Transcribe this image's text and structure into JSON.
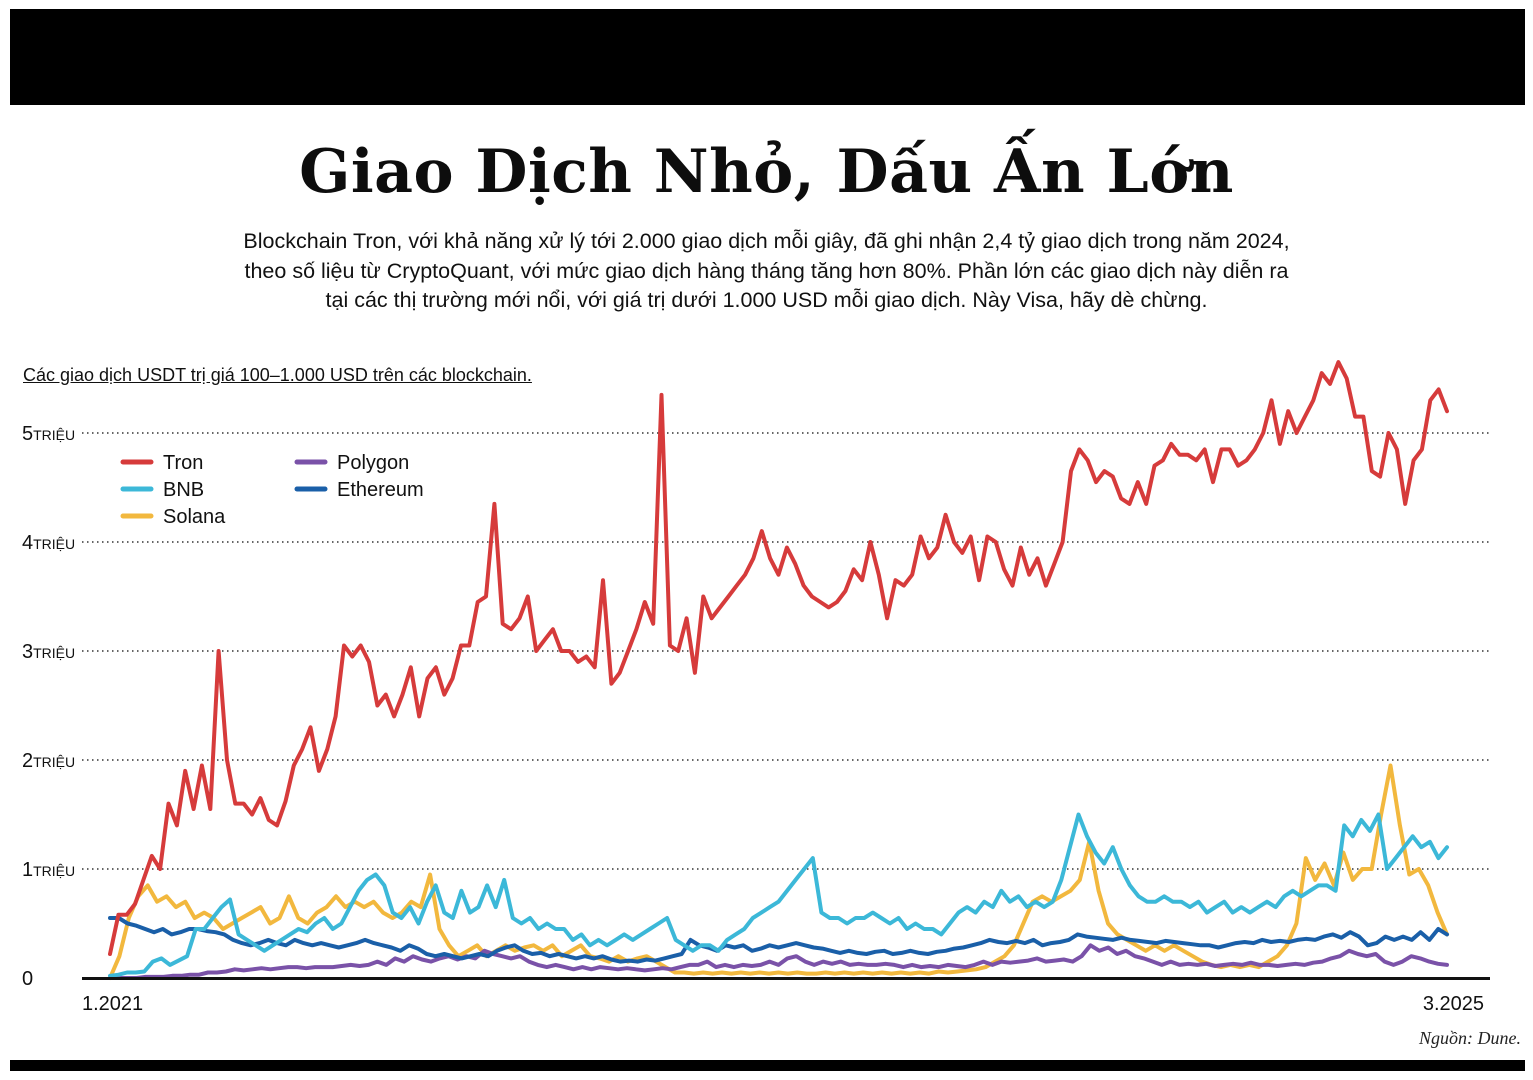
{
  "header": {
    "title": "Giao Dịch Nhỏ, Dấu Ấn Lớn",
    "subtitle_lines": [
      "Blockchain Tron, với khả năng xử lý tới 2.000 giao dịch mỗi giây, đã ghi nhận 2,4 tỷ giao dịch trong năm 2024,",
      "theo số liệu từ CryptoQuant, với mức giao dịch hàng tháng tăng hơn 80%. Phần lớn các giao dịch này diễn ra",
      "tại các thị trường mới nổi, với giá trị dưới 1.000 USD mỗi giao dịch. Này Visa, hãy dè chừng."
    ]
  },
  "footer": {
    "source": "Nguồn: Dune."
  },
  "chart_data": {
    "type": "line",
    "title": "Các giao dịch USDT trị giá 100–1.000 USD trên các blockchain.",
    "xlabel": "",
    "ylabel": "",
    "x_tick_labels": [
      "1.2021",
      "3.2025"
    ],
    "x_range": [
      "1.2021",
      "3.2025"
    ],
    "ylim": [
      0,
      5600000
    ],
    "y_ticks": [
      {
        "value": 0,
        "num": "0",
        "unit": ""
      },
      {
        "value": 1000000,
        "num": "1",
        "unit": "TRIỆU"
      },
      {
        "value": 2000000,
        "num": "2",
        "unit": "TRIỆU"
      },
      {
        "value": 3000000,
        "num": "3",
        "unit": "TRIỆU"
      },
      {
        "value": 4000000,
        "num": "4",
        "unit": "TRIỆU"
      },
      {
        "value": 5000000,
        "num": "5",
        "unit": "TRIỆU"
      }
    ],
    "grid": "horizontal dotted",
    "legend": "top-left",
    "x_note": "points are evenly spaced in time from 1.2021 to 3.2025",
    "series": [
      {
        "name": "Tron",
        "color": "#d63b3b",
        "values": [
          0.22,
          0.58,
          0.58,
          0.68,
          0.9,
          1.12,
          1.0,
          1.6,
          1.4,
          1.9,
          1.55,
          1.95,
          1.55,
          3.0,
          2.0,
          1.6,
          1.6,
          1.5,
          1.65,
          1.45,
          1.4,
          1.62,
          1.95,
          2.1,
          2.3,
          1.9,
          2.1,
          2.4,
          3.05,
          2.95,
          3.05,
          2.9,
          2.5,
          2.6,
          2.4,
          2.6,
          2.85,
          2.4,
          2.75,
          2.85,
          2.6,
          2.75,
          3.05,
          3.05,
          3.45,
          3.5,
          4.35,
          3.25,
          3.2,
          3.3,
          3.5,
          3.0,
          3.1,
          3.2,
          3.0,
          3.0,
          2.9,
          2.95,
          2.85,
          3.65,
          2.7,
          2.8,
          3.0,
          3.2,
          3.45,
          3.25,
          5.35,
          3.05,
          3.0,
          3.3,
          2.8,
          3.5,
          3.3,
          3.4,
          3.5,
          3.6,
          3.7,
          3.85,
          4.1,
          3.85,
          3.7,
          3.95,
          3.8,
          3.6,
          3.5,
          3.45,
          3.4,
          3.45,
          3.55,
          3.75,
          3.65,
          4.0,
          3.7,
          3.3,
          3.65,
          3.6,
          3.7,
          4.05,
          3.85,
          3.95,
          4.25,
          4.0,
          3.9,
          4.05,
          3.65,
          4.05,
          4.0,
          3.75,
          3.6,
          3.95,
          3.7,
          3.85,
          3.6,
          3.8,
          4.0,
          4.65,
          4.85,
          4.75,
          4.55,
          4.65,
          4.6,
          4.4,
          4.35,
          4.55,
          4.35,
          4.7,
          4.75,
          4.9,
          4.8,
          4.8,
          4.75,
          4.85,
          4.55,
          4.85,
          4.85,
          4.7,
          4.75,
          4.85,
          5.0,
          5.3,
          4.9,
          5.2,
          5.0,
          5.15,
          5.3,
          5.55,
          5.45,
          5.65,
          5.5,
          5.15,
          5.15,
          4.65,
          4.6,
          5.0,
          4.85,
          4.35,
          4.75,
          4.85,
          5.3,
          5.4,
          5.2
        ]
      },
      {
        "name": "BNB",
        "color": "#3cb8d8",
        "values": [
          0.02,
          0.03,
          0.05,
          0.05,
          0.06,
          0.15,
          0.18,
          0.12,
          0.16,
          0.2,
          0.45,
          0.45,
          0.55,
          0.65,
          0.72,
          0.4,
          0.35,
          0.3,
          0.25,
          0.3,
          0.35,
          0.4,
          0.45,
          0.42,
          0.5,
          0.55,
          0.45,
          0.5,
          0.65,
          0.8,
          0.9,
          0.95,
          0.85,
          0.6,
          0.55,
          0.65,
          0.5,
          0.7,
          0.85,
          0.6,
          0.55,
          0.8,
          0.6,
          0.65,
          0.85,
          0.65,
          0.9,
          0.55,
          0.5,
          0.55,
          0.45,
          0.5,
          0.45,
          0.45,
          0.35,
          0.4,
          0.3,
          0.35,
          0.3,
          0.35,
          0.4,
          0.35,
          0.4,
          0.45,
          0.5,
          0.55,
          0.35,
          0.3,
          0.25,
          0.3,
          0.3,
          0.25,
          0.35,
          0.4,
          0.45,
          0.55,
          0.6,
          0.65,
          0.7,
          0.8,
          0.9,
          1.0,
          1.1,
          0.6,
          0.55,
          0.55,
          0.5,
          0.55,
          0.55,
          0.6,
          0.55,
          0.5,
          0.55,
          0.45,
          0.5,
          0.45,
          0.45,
          0.4,
          0.5,
          0.6,
          0.65,
          0.6,
          0.7,
          0.65,
          0.8,
          0.7,
          0.75,
          0.65,
          0.7,
          0.65,
          0.7,
          0.9,
          1.2,
          1.5,
          1.3,
          1.15,
          1.05,
          1.2,
          1.0,
          0.85,
          0.75,
          0.7,
          0.7,
          0.75,
          0.7,
          0.7,
          0.65,
          0.7,
          0.6,
          0.65,
          0.7,
          0.6,
          0.65,
          0.6,
          0.65,
          0.7,
          0.65,
          0.75,
          0.8,
          0.75,
          0.8,
          0.85,
          0.85,
          0.8,
          1.4,
          1.3,
          1.45,
          1.35,
          1.5,
          1.0,
          1.1,
          1.2,
          1.3,
          1.2,
          1.25,
          1.1,
          1.2
        ]
      },
      {
        "name": "Solana",
        "color": "#f2b83e",
        "values": [
          0.0,
          0.2,
          0.55,
          0.75,
          0.85,
          0.7,
          0.75,
          0.65,
          0.7,
          0.55,
          0.6,
          0.55,
          0.45,
          0.5,
          0.55,
          0.6,
          0.65,
          0.5,
          0.55,
          0.75,
          0.55,
          0.5,
          0.6,
          0.65,
          0.75,
          0.65,
          0.7,
          0.65,
          0.7,
          0.6,
          0.55,
          0.6,
          0.7,
          0.65,
          0.95,
          0.45,
          0.3,
          0.2,
          0.25,
          0.3,
          0.2,
          0.25,
          0.3,
          0.25,
          0.28,
          0.3,
          0.25,
          0.3,
          0.2,
          0.25,
          0.3,
          0.2,
          0.18,
          0.15,
          0.2,
          0.15,
          0.18,
          0.2,
          0.15,
          0.1,
          0.05,
          0.05,
          0.04,
          0.05,
          0.04,
          0.05,
          0.04,
          0.05,
          0.04,
          0.05,
          0.04,
          0.05,
          0.04,
          0.05,
          0.04,
          0.04,
          0.05,
          0.04,
          0.05,
          0.04,
          0.05,
          0.04,
          0.05,
          0.04,
          0.05,
          0.04,
          0.05,
          0.04,
          0.06,
          0.05,
          0.06,
          0.07,
          0.08,
          0.1,
          0.15,
          0.2,
          0.3,
          0.5,
          0.7,
          0.75,
          0.7,
          0.75,
          0.8,
          0.9,
          1.25,
          0.8,
          0.5,
          0.4,
          0.35,
          0.3,
          0.25,
          0.3,
          0.25,
          0.3,
          0.25,
          0.2,
          0.15,
          0.12,
          0.1,
          0.12,
          0.1,
          0.12,
          0.1,
          0.15,
          0.2,
          0.3,
          0.5,
          1.1,
          0.9,
          1.05,
          0.85,
          1.15,
          0.9,
          1.0,
          1.0,
          1.5,
          1.95,
          1.4,
          0.95,
          1.0,
          0.85,
          0.6,
          0.4
        ]
      },
      {
        "name": "Polygon",
        "color": "#7a52a8",
        "values": [
          0.0,
          0.0,
          0.0,
          0.0,
          0.01,
          0.01,
          0.01,
          0.02,
          0.02,
          0.03,
          0.03,
          0.05,
          0.05,
          0.06,
          0.08,
          0.07,
          0.08,
          0.09,
          0.08,
          0.09,
          0.1,
          0.1,
          0.09,
          0.1,
          0.1,
          0.1,
          0.11,
          0.12,
          0.11,
          0.12,
          0.15,
          0.12,
          0.18,
          0.15,
          0.2,
          0.17,
          0.15,
          0.18,
          0.2,
          0.17,
          0.2,
          0.18,
          0.25,
          0.22,
          0.2,
          0.18,
          0.2,
          0.15,
          0.12,
          0.1,
          0.12,
          0.1,
          0.08,
          0.1,
          0.08,
          0.1,
          0.09,
          0.08,
          0.09,
          0.08,
          0.07,
          0.08,
          0.09,
          0.08,
          0.1,
          0.12,
          0.12,
          0.15,
          0.1,
          0.12,
          0.1,
          0.12,
          0.11,
          0.12,
          0.15,
          0.12,
          0.18,
          0.2,
          0.15,
          0.12,
          0.15,
          0.13,
          0.15,
          0.12,
          0.13,
          0.12,
          0.12,
          0.13,
          0.12,
          0.1,
          0.12,
          0.1,
          0.11,
          0.1,
          0.12,
          0.11,
          0.1,
          0.12,
          0.15,
          0.12,
          0.15,
          0.14,
          0.15,
          0.16,
          0.18,
          0.15,
          0.16,
          0.17,
          0.15,
          0.2,
          0.3,
          0.25,
          0.28,
          0.22,
          0.25,
          0.2,
          0.18,
          0.15,
          0.12,
          0.15,
          0.12,
          0.13,
          0.12,
          0.13,
          0.11,
          0.12,
          0.13,
          0.12,
          0.14,
          0.12,
          0.12,
          0.11,
          0.12,
          0.13,
          0.12,
          0.14,
          0.15,
          0.18,
          0.2,
          0.25,
          0.22,
          0.2,
          0.22,
          0.15,
          0.12,
          0.15,
          0.2,
          0.18,
          0.15,
          0.13,
          0.12
        ]
      },
      {
        "name": "Ethereum",
        "color": "#1a5fa8",
        "values": [
          0.55,
          0.55,
          0.5,
          0.48,
          0.45,
          0.42,
          0.45,
          0.4,
          0.42,
          0.45,
          0.45,
          0.43,
          0.42,
          0.4,
          0.35,
          0.32,
          0.3,
          0.32,
          0.35,
          0.32,
          0.3,
          0.35,
          0.32,
          0.3,
          0.32,
          0.3,
          0.28,
          0.3,
          0.32,
          0.35,
          0.32,
          0.3,
          0.28,
          0.25,
          0.3,
          0.27,
          0.22,
          0.2,
          0.22,
          0.2,
          0.18,
          0.2,
          0.22,
          0.2,
          0.25,
          0.28,
          0.3,
          0.25,
          0.22,
          0.23,
          0.2,
          0.22,
          0.2,
          0.18,
          0.2,
          0.18,
          0.2,
          0.17,
          0.15,
          0.16,
          0.15,
          0.17,
          0.16,
          0.18,
          0.2,
          0.22,
          0.35,
          0.3,
          0.28,
          0.25,
          0.3,
          0.28,
          0.3,
          0.25,
          0.27,
          0.3,
          0.28,
          0.3,
          0.32,
          0.3,
          0.28,
          0.27,
          0.25,
          0.23,
          0.25,
          0.23,
          0.22,
          0.24,
          0.25,
          0.22,
          0.23,
          0.25,
          0.23,
          0.22,
          0.24,
          0.25,
          0.27,
          0.28,
          0.3,
          0.32,
          0.35,
          0.33,
          0.32,
          0.34,
          0.32,
          0.35,
          0.3,
          0.32,
          0.33,
          0.35,
          0.4,
          0.38,
          0.37,
          0.36,
          0.35,
          0.37,
          0.35,
          0.34,
          0.33,
          0.32,
          0.34,
          0.33,
          0.32,
          0.31,
          0.3,
          0.3,
          0.28,
          0.3,
          0.32,
          0.33,
          0.32,
          0.35,
          0.33,
          0.34,
          0.33,
          0.35,
          0.36,
          0.35,
          0.38,
          0.4,
          0.37,
          0.42,
          0.38,
          0.3,
          0.32,
          0.38,
          0.35,
          0.38,
          0.35,
          0.42,
          0.35,
          0.45,
          0.4
        ]
      }
    ]
  }
}
